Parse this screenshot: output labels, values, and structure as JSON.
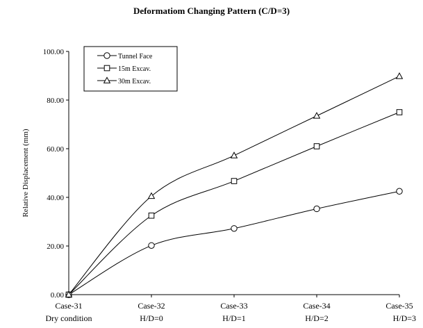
{
  "chart_data": {
    "type": "line",
    "title": "Deformatiom Changing Pattern (C/D=3)",
    "xlabel": "",
    "ylabel": "Relative Displacement (mm)",
    "ylim": [
      0,
      100
    ],
    "y_ticks": [
      "0.00",
      "20.00",
      "40.00",
      "60.00",
      "80.00",
      "100.00"
    ],
    "categories": [
      "Case-31",
      "Case-32",
      "Case-33",
      "Case-34",
      "Case-35"
    ],
    "sublabels": [
      "Dry condition",
      "H/D=0",
      "H/D=1",
      "H/D=2",
      "H/D=3"
    ],
    "grid": false,
    "legend_position": "top-left",
    "series": [
      {
        "name": "Tunnel Face",
        "marker": "circle",
        "values": [
          0,
          20.2,
          27.2,
          35.3,
          42.5
        ]
      },
      {
        "name": "15m Excav.",
        "marker": "square",
        "values": [
          0,
          32.5,
          46.7,
          61.0,
          75.0
        ]
      },
      {
        "name": "30m Excav.",
        "marker": "triangle",
        "values": [
          0,
          40.5,
          57.2,
          73.5,
          89.8
        ]
      }
    ],
    "colors": {
      "line": "#000000",
      "background": "#ffffff"
    }
  }
}
